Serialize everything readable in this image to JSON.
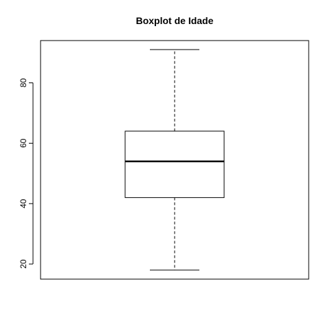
{
  "chart_data": {
    "type": "boxplot",
    "title": "Boxplot de Idade",
    "xlabel": "",
    "ylabel": "",
    "ylim": [
      15,
      94
    ],
    "yticks": [
      20,
      40,
      60,
      80
    ],
    "grid": false,
    "box": {
      "min": 18,
      "q1": 42,
      "median": 54,
      "q3": 64,
      "max": 91
    }
  }
}
